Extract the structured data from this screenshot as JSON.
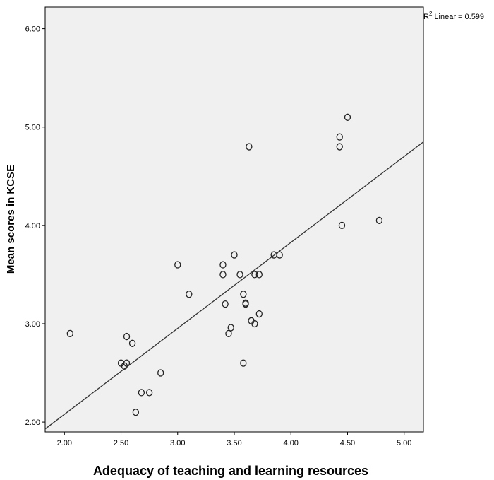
{
  "chart_data": {
    "type": "scatter",
    "xlabel": "Adequacy of teaching and learning resources",
    "ylabel": "Mean scores in KCSE",
    "xlim": [
      1.83,
      5.17
    ],
    "ylim": [
      1.9,
      6.22
    ],
    "xticks": [
      "2.00",
      "2.50",
      "3.00",
      "3.50",
      "4.00",
      "4.50",
      "5.00"
    ],
    "yticks": [
      "2.00",
      "3.00",
      "4.00",
      "5.00",
      "6.00"
    ],
    "r2_label": "Linear = 0.599",
    "r2_prefix": "R",
    "r2_sup": "2",
    "fit_line": {
      "x": [
        1.83,
        5.17
      ],
      "y": [
        1.93,
        4.85
      ]
    },
    "points": [
      {
        "x": 2.05,
        "y": 2.9
      },
      {
        "x": 2.5,
        "y": 2.6
      },
      {
        "x": 2.53,
        "y": 2.57
      },
      {
        "x": 2.55,
        "y": 2.6
      },
      {
        "x": 2.55,
        "y": 2.87
      },
      {
        "x": 2.6,
        "y": 2.8
      },
      {
        "x": 2.63,
        "y": 2.1
      },
      {
        "x": 2.68,
        "y": 2.3
      },
      {
        "x": 2.75,
        "y": 2.3
      },
      {
        "x": 2.85,
        "y": 2.5
      },
      {
        "x": 3.0,
        "y": 3.6
      },
      {
        "x": 3.1,
        "y": 3.3
      },
      {
        "x": 3.4,
        "y": 3.6
      },
      {
        "x": 3.4,
        "y": 3.5
      },
      {
        "x": 3.42,
        "y": 3.2
      },
      {
        "x": 3.45,
        "y": 2.9
      },
      {
        "x": 3.47,
        "y": 2.96
      },
      {
        "x": 3.5,
        "y": 3.7
      },
      {
        "x": 3.55,
        "y": 3.5
      },
      {
        "x": 3.58,
        "y": 3.3
      },
      {
        "x": 3.58,
        "y": 2.6
      },
      {
        "x": 3.6,
        "y": 3.2
      },
      {
        "x": 3.6,
        "y": 3.21
      },
      {
        "x": 3.63,
        "y": 4.8
      },
      {
        "x": 3.65,
        "y": 3.03
      },
      {
        "x": 3.68,
        "y": 3.0
      },
      {
        "x": 3.68,
        "y": 3.5
      },
      {
        "x": 3.72,
        "y": 3.5
      },
      {
        "x": 3.72,
        "y": 3.1
      },
      {
        "x": 3.85,
        "y": 3.7
      },
      {
        "x": 3.9,
        "y": 3.7
      },
      {
        "x": 4.43,
        "y": 4.9
      },
      {
        "x": 4.43,
        "y": 4.8
      },
      {
        "x": 4.45,
        "y": 4.0
      },
      {
        "x": 4.5,
        "y": 5.1
      },
      {
        "x": 4.78,
        "y": 4.05
      }
    ],
    "colors": {
      "plot_bg": "#f0f0f0",
      "marker_stroke": "#222222",
      "line": "#333333",
      "frame": "#000000"
    }
  }
}
